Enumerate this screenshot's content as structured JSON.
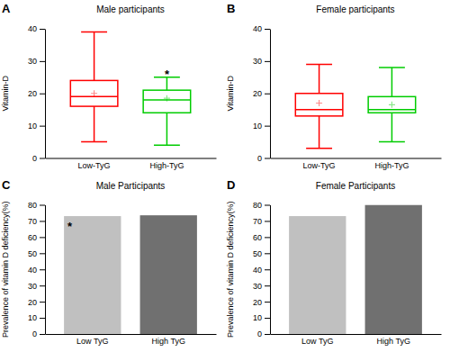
{
  "chart_data": [
    {
      "type": "box",
      "title": "Male participants",
      "ylabel": "Vitamin-D",
      "categories": [
        "Low-TyG",
        "High-TyG"
      ],
      "boxes": [
        {
          "q1": 16,
          "median": 19,
          "q3": 24,
          "whisker_low": 5,
          "whisker_high": 39,
          "mean": 20
        },
        {
          "q1": 14,
          "median": 18,
          "q3": 21,
          "whisker_low": 4,
          "whisker_high": 25,
          "mean": 18.5
        }
      ],
      "colors": [
        "red",
        "#00cc00"
      ],
      "ylim": [
        0,
        40
      ],
      "yticks": [
        0,
        10,
        20,
        30,
        40
      ],
      "annotations": [
        {
          "text": "A"
        },
        {
          "text": "*",
          "category": "High-TyG"
        }
      ]
    },
    {
      "type": "box",
      "title": "Female participants",
      "ylabel": "Vitamin-D",
      "categories": [
        "Low-TyG",
        "High-TyG"
      ],
      "boxes": [
        {
          "q1": 13,
          "median": 15,
          "q3": 20,
          "whisker_low": 3,
          "whisker_high": 29,
          "mean": 17
        },
        {
          "q1": 14,
          "median": 15,
          "q3": 19,
          "whisker_low": 5,
          "whisker_high": 28,
          "mean": 16.5
        }
      ],
      "colors": [
        "red",
        "#00cc00"
      ],
      "ylim": [
        0,
        40
      ],
      "yticks": [
        0,
        10,
        20,
        30,
        40
      ],
      "annotations": [
        {
          "text": "B"
        }
      ]
    },
    {
      "type": "bar",
      "title": "Male Participants",
      "ylabel": "Prevalence of vitamin D deficiency(%)",
      "categories": [
        "Low TyG",
        "High TyG"
      ],
      "values": [
        73,
        73.5
      ],
      "colors": [
        "#c0c0c0",
        "#707070"
      ],
      "ylim": [
        0,
        80
      ],
      "yticks": [
        0,
        10,
        20,
        30,
        40,
        50,
        60,
        70,
        80
      ],
      "annotations": [
        {
          "text": "C"
        },
        {
          "text": "*",
          "category": "Low TyG"
        }
      ]
    },
    {
      "type": "bar",
      "title": "Female Participants",
      "ylabel": "Prevalence of vitamin D deficiency(%)",
      "categories": [
        "Low TyG",
        "High TyG"
      ],
      "values": [
        73,
        80
      ],
      "colors": [
        "#c0c0c0",
        "#707070"
      ],
      "ylim": [
        0,
        80
      ],
      "yticks": [
        0,
        10,
        20,
        30,
        40,
        50,
        60,
        70,
        80
      ],
      "annotations": [
        {
          "text": "D"
        }
      ]
    }
  ]
}
